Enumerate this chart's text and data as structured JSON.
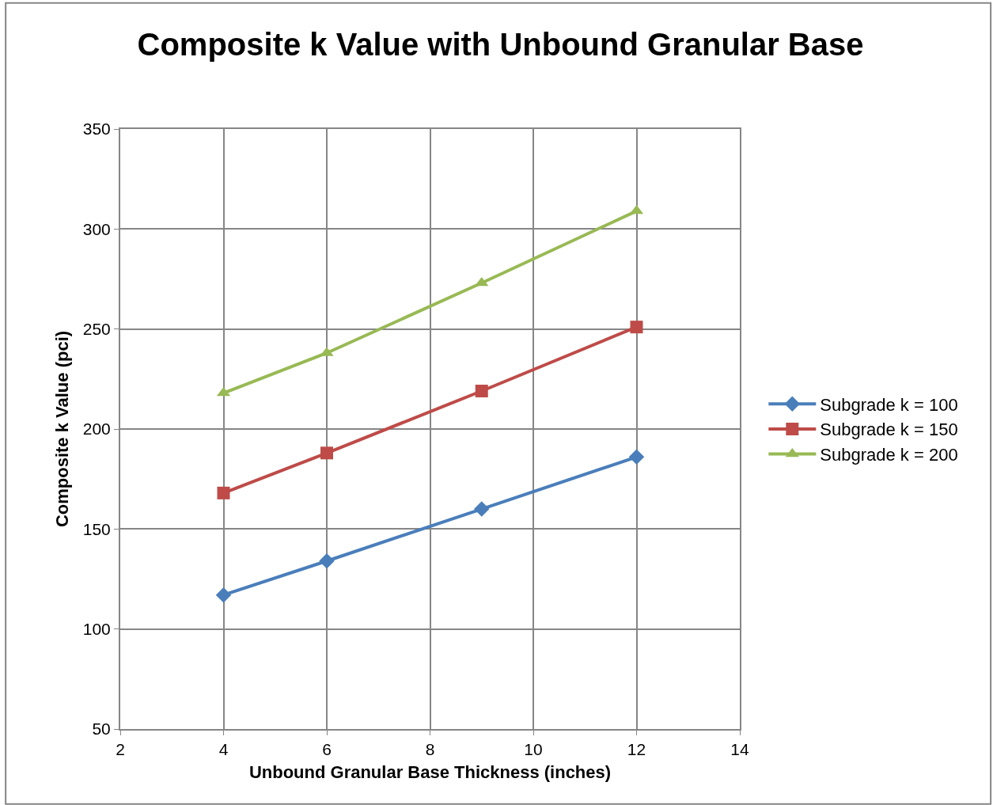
{
  "chart_data": {
    "type": "line",
    "title": "Composite k Value with Unbound Granular Base",
    "xlabel": "Unbound Granular Base Thickness (inches)",
    "ylabel": "Composite k Value (pci)",
    "x": [
      4,
      6,
      9,
      12
    ],
    "series": [
      {
        "name": "Subgrade k = 100",
        "color": "#4a7ebb",
        "marker": "diamond",
        "values": [
          117,
          134,
          160,
          186
        ]
      },
      {
        "name": "Subgrade k = 150",
        "color": "#be4b48",
        "marker": "square",
        "values": [
          168,
          188,
          219,
          251
        ]
      },
      {
        "name": "Subgrade k = 200",
        "color": "#98b954",
        "marker": "triangle",
        "values": [
          218,
          238,
          273,
          309
        ]
      }
    ],
    "xlim": [
      2,
      14
    ],
    "xticks": [
      2,
      4,
      6,
      8,
      10,
      12,
      14
    ],
    "ylim": [
      50,
      350
    ],
    "yticks": [
      50,
      100,
      150,
      200,
      250,
      300,
      350
    ],
    "grid": true,
    "legend": "right",
    "line_style": "solid"
  }
}
